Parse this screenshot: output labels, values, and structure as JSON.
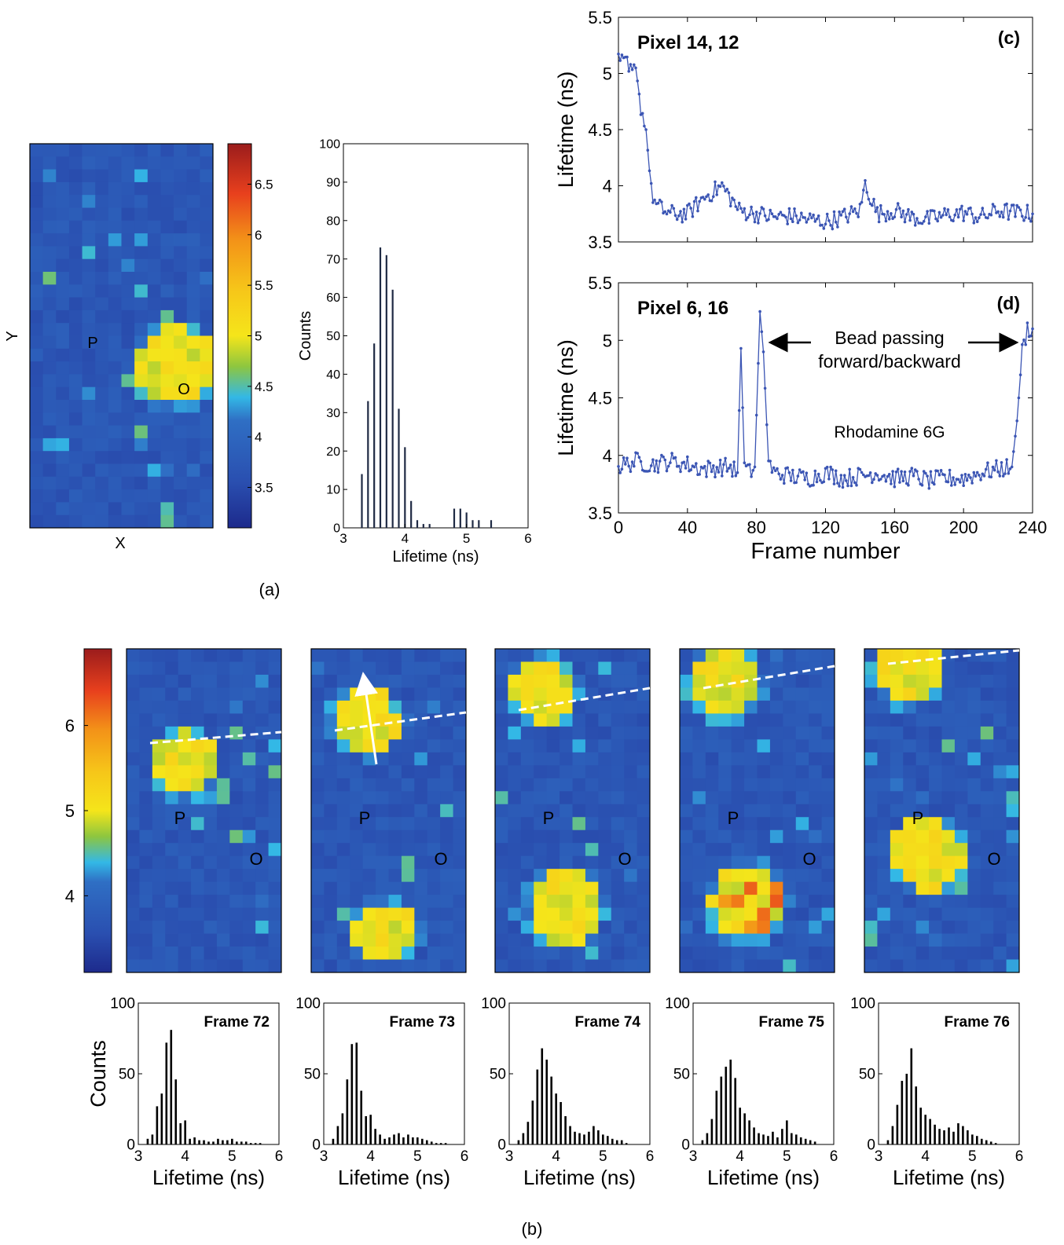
{
  "figure": {
    "label_a": "(a)",
    "label_b": "(b)"
  },
  "panel_a": {
    "map": {
      "xlabel": "X",
      "ylabel": "Y",
      "marker_p": "P",
      "marker_o": "O",
      "grid_cols": 14,
      "grid_rows": 30,
      "base_lifetime_ns": 3.7,
      "bead_lifetime_ns": 5.0
    },
    "colorbar": {
      "min": 3.1,
      "max": 6.9,
      "ticks": [
        "3.5",
        "4",
        "4.5",
        "5",
        "5.5",
        "6",
        "6.5"
      ],
      "tick_values": [
        3.5,
        4,
        4.5,
        5,
        5.5,
        6,
        6.5
      ]
    }
  },
  "panel_b": {
    "colorbar": {
      "min": 3.1,
      "max": 6.9,
      "ticks": [
        "4",
        "5",
        "6"
      ],
      "tick_values": [
        4,
        5,
        6
      ]
    },
    "frames": [
      {
        "title": "Frame 72",
        "marker_p": "P",
        "marker_o": "O"
      },
      {
        "title": "Frame 73",
        "marker_p": "P",
        "marker_o": "O"
      },
      {
        "title": "Frame 74",
        "marker_p": "P",
        "marker_o": "O"
      },
      {
        "title": "Frame 75",
        "marker_p": "P",
        "marker_o": "O"
      },
      {
        "title": "Frame 76",
        "marker_p": "P",
        "marker_o": "O"
      }
    ],
    "hist_ylabel": "Counts",
    "hist_xlabel": "Lifetime (ns)"
  },
  "chart_data": [
    {
      "type": "bar",
      "panel": "a-histogram",
      "title": "",
      "xlabel": "Lifetime (ns)",
      "ylabel": "Counts",
      "xlim": [
        3,
        6
      ],
      "ylim": [
        0,
        100
      ],
      "xticks": [
        "3",
        "4",
        "5",
        "6"
      ],
      "yticks": [
        "0",
        "10",
        "20",
        "30",
        "40",
        "50",
        "60",
        "70",
        "80",
        "90",
        "100"
      ],
      "x": [
        3.3,
        3.4,
        3.5,
        3.6,
        3.7,
        3.8,
        3.9,
        4.0,
        4.1,
        4.2,
        4.3,
        4.4,
        4.5,
        4.6,
        4.7,
        4.8,
        4.9,
        5.0,
        5.1,
        5.2,
        5.3,
        5.4
      ],
      "values": [
        14,
        33,
        48,
        73,
        71,
        62,
        31,
        21,
        7,
        2,
        1,
        1,
        0,
        0,
        0,
        5,
        5,
        4,
        2,
        2,
        0,
        2
      ]
    },
    {
      "type": "line",
      "panel": "(c)",
      "panel_label": "(c)",
      "annotation": "Pixel 14, 12",
      "ylabel": "Lifetime (ns)",
      "xlabel": "",
      "xlim": [
        0,
        240
      ],
      "ylim": [
        3.5,
        5.5
      ],
      "yticks": [
        "3.5",
        "4",
        "4.5",
        "5",
        "5.5"
      ],
      "x": [
        0,
        5,
        10,
        13,
        16,
        19,
        22,
        30,
        40,
        50,
        60,
        70,
        80,
        90,
        100,
        110,
        120,
        130,
        140,
        143,
        150,
        160,
        170,
        180,
        190,
        200,
        210,
        220,
        230,
        240
      ],
      "y": [
        5.1,
        5.1,
        5.05,
        4.7,
        4.5,
        3.95,
        3.82,
        3.75,
        3.75,
        3.9,
        4.0,
        3.78,
        3.75,
        3.72,
        3.73,
        3.7,
        3.68,
        3.72,
        3.78,
        4.02,
        3.75,
        3.78,
        3.72,
        3.7,
        3.74,
        3.76,
        3.72,
        3.78,
        3.76,
        3.75
      ]
    },
    {
      "type": "line",
      "panel": "(d)",
      "panel_label": "(d)",
      "annotation": "Pixel 6, 16",
      "annotation_2": "Bead passing",
      "annotation_3": "forward/backward",
      "annotation_4": "Rhodamine 6G",
      "ylabel": "Lifetime (ns)",
      "xlabel": "Frame number",
      "xlim": [
        0,
        240
      ],
      "ylim": [
        3.5,
        5.5
      ],
      "xticks": [
        "0",
        "40",
        "80",
        "120",
        "160",
        "200",
        "240"
      ],
      "yticks": [
        "3.5",
        "4",
        "4.5",
        "5",
        "5.5"
      ],
      "x": [
        0,
        10,
        20,
        30,
        40,
        50,
        60,
        65,
        69,
        71,
        73,
        76,
        79,
        82,
        84,
        87,
        90,
        100,
        110,
        120,
        130,
        140,
        150,
        160,
        170,
        180,
        190,
        200,
        210,
        220,
        228,
        231,
        234,
        237,
        240
      ],
      "y": [
        3.9,
        3.95,
        3.92,
        3.95,
        3.92,
        3.88,
        3.9,
        3.9,
        3.85,
        4.93,
        3.9,
        3.85,
        3.9,
        5.25,
        4.9,
        3.95,
        3.85,
        3.82,
        3.8,
        3.85,
        3.8,
        3.82,
        3.85,
        3.8,
        3.82,
        3.78,
        3.8,
        3.8,
        3.85,
        3.88,
        3.9,
        4.3,
        4.9,
        5.1,
        5.1
      ]
    },
    {
      "type": "bar",
      "panel": "b-frame-72",
      "title": "Frame 72",
      "xlabel": "Lifetime (ns)",
      "ylabel": "Counts",
      "xlim": [
        3,
        6
      ],
      "ylim": [
        0,
        100
      ],
      "xticks": [
        "3",
        "4",
        "5",
        "6"
      ],
      "yticks": [
        "0",
        "50",
        "100"
      ],
      "x": [
        3.2,
        3.3,
        3.4,
        3.5,
        3.6,
        3.7,
        3.8,
        3.9,
        4.0,
        4.1,
        4.2,
        4.3,
        4.4,
        4.5,
        4.6,
        4.7,
        4.8,
        4.9,
        5.0,
        5.1,
        5.2,
        5.3,
        5.4,
        5.5,
        5.6
      ],
      "values": [
        4,
        7,
        27,
        36,
        72,
        81,
        46,
        15,
        17,
        4,
        5,
        3,
        3,
        2,
        2,
        4,
        3,
        3,
        4,
        2,
        2,
        2,
        1,
        1,
        1
      ]
    },
    {
      "type": "bar",
      "panel": "b-frame-73",
      "title": "Frame 73",
      "xlabel": "Lifetime (ns)",
      "ylabel": "Counts",
      "xlim": [
        3,
        6
      ],
      "ylim": [
        0,
        100
      ],
      "xticks": [
        "3",
        "4",
        "5",
        "6"
      ],
      "yticks": [
        "0",
        "50",
        "100"
      ],
      "x": [
        3.2,
        3.3,
        3.4,
        3.5,
        3.6,
        3.7,
        3.8,
        3.9,
        4.0,
        4.1,
        4.2,
        4.3,
        4.4,
        4.5,
        4.6,
        4.7,
        4.8,
        4.9,
        5.0,
        5.1,
        5.2,
        5.3,
        5.4,
        5.5,
        5.6
      ],
      "values": [
        4,
        13,
        22,
        46,
        71,
        72,
        38,
        20,
        21,
        11,
        7,
        4,
        5,
        7,
        8,
        5,
        7,
        5,
        5,
        4,
        3,
        2,
        1,
        1,
        1
      ]
    },
    {
      "type": "bar",
      "panel": "b-frame-74",
      "title": "Frame 74",
      "xlabel": "Lifetime (ns)",
      "ylabel": "Counts",
      "xlim": [
        3,
        6
      ],
      "ylim": [
        0,
        100
      ],
      "xticks": [
        "3",
        "4",
        "5",
        "6"
      ],
      "yticks": [
        "0",
        "50",
        "100"
      ],
      "x": [
        3.2,
        3.3,
        3.4,
        3.5,
        3.6,
        3.7,
        3.8,
        3.9,
        4.0,
        4.1,
        4.2,
        4.3,
        4.4,
        4.5,
        4.6,
        4.7,
        4.8,
        4.9,
        5.0,
        5.1,
        5.2,
        5.3,
        5.4,
        5.5,
        5.6
      ],
      "values": [
        3,
        8,
        16,
        31,
        53,
        68,
        60,
        48,
        36,
        30,
        20,
        13,
        9,
        8,
        7,
        9,
        13,
        10,
        7,
        6,
        4,
        3,
        3,
        1,
        0
      ]
    },
    {
      "type": "bar",
      "panel": "b-frame-75",
      "title": "Frame 75",
      "xlabel": "Lifetime (ns)",
      "ylabel": "Counts",
      "xlim": [
        3,
        6
      ],
      "ylim": [
        0,
        100
      ],
      "xticks": [
        "3",
        "4",
        "5",
        "6"
      ],
      "yticks": [
        "0",
        "50",
        "100"
      ],
      "x": [
        3.2,
        3.3,
        3.4,
        3.5,
        3.6,
        3.7,
        3.8,
        3.9,
        4.0,
        4.1,
        4.2,
        4.3,
        4.4,
        4.5,
        4.6,
        4.7,
        4.8,
        4.9,
        5.0,
        5.1,
        5.2,
        5.3,
        5.4,
        5.5,
        5.6
      ],
      "values": [
        3,
        8,
        18,
        38,
        48,
        55,
        60,
        47,
        26,
        22,
        17,
        12,
        8,
        7,
        6,
        9,
        5,
        11,
        17,
        8,
        7,
        5,
        4,
        3,
        2
      ]
    },
    {
      "type": "bar",
      "panel": "b-frame-76",
      "title": "Frame 76",
      "xlabel": "Lifetime (ns)",
      "ylabel": "Counts",
      "xlim": [
        3,
        6
      ],
      "ylim": [
        0,
        100
      ],
      "xticks": [
        "3",
        "4",
        "5",
        "6"
      ],
      "yticks": [
        "0",
        "50",
        "100"
      ],
      "x": [
        3.2,
        3.3,
        3.4,
        3.5,
        3.6,
        3.7,
        3.8,
        3.9,
        4.0,
        4.1,
        4.2,
        4.3,
        4.4,
        4.5,
        4.6,
        4.7,
        4.8,
        4.9,
        5.0,
        5.1,
        5.2,
        5.3,
        5.4,
        5.5,
        5.6
      ],
      "values": [
        3,
        13,
        28,
        45,
        50,
        68,
        41,
        26,
        21,
        18,
        14,
        11,
        10,
        12,
        9,
        15,
        13,
        10,
        7,
        6,
        4,
        3,
        2,
        1,
        0
      ]
    }
  ]
}
